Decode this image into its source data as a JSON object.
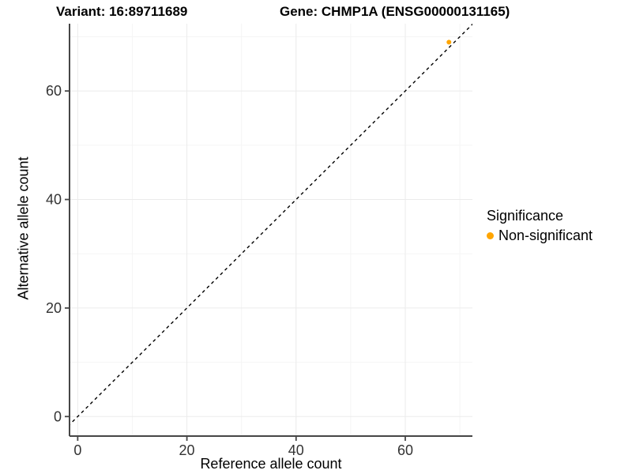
{
  "header": {
    "title_left": "Variant: 16:89711689",
    "title_right": "Gene: CHMP1A (ENSG00000131165)"
  },
  "legend": {
    "title": "Significance",
    "position": "right",
    "items": [
      {
        "label": "Non-significant",
        "color": "#FFA500"
      }
    ]
  },
  "colors": {
    "background": "#ffffff",
    "accent_point": "#FFA500",
    "axis_line": "#464646",
    "tick_text": "#333333",
    "grid_major": "#ebebeb",
    "grid_minor": "#f5f5f5",
    "abline": "#000000"
  },
  "chart_data": {
    "type": "scatter",
    "xlabel": "Reference allele count",
    "ylabel": "Alternative allele count",
    "xlim": [
      -1.5,
      72.3
    ],
    "ylim": [
      -3.6,
      72.4
    ],
    "xticks": [
      0,
      20,
      40,
      60
    ],
    "yticks": [
      0,
      20,
      40,
      60
    ],
    "xminor": [
      10,
      30,
      50,
      70
    ],
    "yminor": [
      10,
      30,
      50,
      70
    ],
    "grid": true,
    "legend_position": "right",
    "series": [
      {
        "name": "Non-significant",
        "color": "#FFA500",
        "points": [
          {
            "x": 68,
            "y": 69
          }
        ]
      }
    ],
    "abline": {
      "slope": 1,
      "intercept": 0,
      "style": "dashed",
      "color": "#000000"
    }
  }
}
